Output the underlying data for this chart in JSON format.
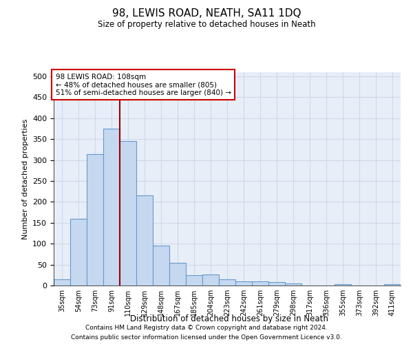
{
  "title": "98, LEWIS ROAD, NEATH, SA11 1DQ",
  "subtitle": "Size of property relative to detached houses in Neath",
  "xlabel": "Distribution of detached houses by size in Neath",
  "ylabel": "Number of detached properties",
  "categories": [
    "35sqm",
    "54sqm",
    "73sqm",
    "91sqm",
    "110sqm",
    "129sqm",
    "148sqm",
    "167sqm",
    "185sqm",
    "204sqm",
    "223sqm",
    "242sqm",
    "261sqm",
    "279sqm",
    "298sqm",
    "317sqm",
    "336sqm",
    "355sqm",
    "373sqm",
    "392sqm",
    "411sqm"
  ],
  "values": [
    15,
    160,
    315,
    375,
    345,
    215,
    95,
    55,
    25,
    27,
    15,
    10,
    10,
    8,
    5,
    0,
    0,
    3,
    0,
    0,
    3
  ],
  "bar_color": "#c5d8f0",
  "bar_edge_color": "#6699cc",
  "grid_color": "#d0d8e8",
  "vline_color": "#990000",
  "vline_x": 3.5,
  "annotation_text": "98 LEWIS ROAD: 108sqm\n← 48% of detached houses are smaller (805)\n51% of semi-detached houses are larger (840) →",
  "annotation_box_color": "#ffffff",
  "annotation_box_edge": "#cc0000",
  "ylim": [
    0,
    510
  ],
  "yticks": [
    0,
    50,
    100,
    150,
    200,
    250,
    300,
    350,
    400,
    450,
    500
  ],
  "footnote1": "Contains HM Land Registry data © Crown copyright and database right 2024.",
  "footnote2": "Contains public sector information licensed under the Open Government Licence v3.0.",
  "bg_color": "#e8eef8",
  "fig_bg": "#ffffff"
}
